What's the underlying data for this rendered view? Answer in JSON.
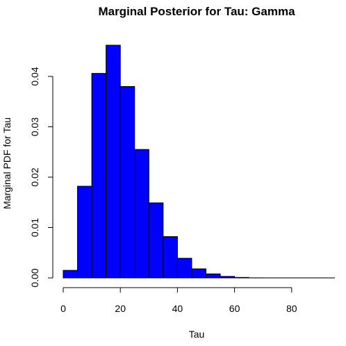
{
  "chart_data": {
    "type": "bar",
    "title": "Marginal Posterior for Tau: Gamma",
    "xlabel": "Tau",
    "ylabel": "Marginal PDF for Tau",
    "bin_width": 5,
    "bins": [
      {
        "start": 0,
        "end": 5,
        "value": 0.0015
      },
      {
        "start": 5,
        "end": 10,
        "value": 0.0182
      },
      {
        "start": 10,
        "end": 15,
        "value": 0.0406
      },
      {
        "start": 15,
        "end": 20,
        "value": 0.0462
      },
      {
        "start": 20,
        "end": 25,
        "value": 0.038
      },
      {
        "start": 25,
        "end": 30,
        "value": 0.0255
      },
      {
        "start": 30,
        "end": 35,
        "value": 0.0149
      },
      {
        "start": 35,
        "end": 40,
        "value": 0.0082
      },
      {
        "start": 40,
        "end": 45,
        "value": 0.0039
      },
      {
        "start": 45,
        "end": 50,
        "value": 0.0018
      },
      {
        "start": 50,
        "end": 55,
        "value": 0.0008
      },
      {
        "start": 55,
        "end": 60,
        "value": 0.0003
      },
      {
        "start": 60,
        "end": 65,
        "value": 0.0001
      },
      {
        "start": 65,
        "end": 70,
        "value": 2e-05
      },
      {
        "start": 70,
        "end": 75,
        "value": 1e-05
      },
      {
        "start": 75,
        "end": 80,
        "value": 1e-05
      },
      {
        "start": 80,
        "end": 85,
        "value": 1e-05
      },
      {
        "start": 85,
        "end": 90,
        "value": 1e-05
      },
      {
        "start": 90,
        "end": 95,
        "value": 1e-05
      }
    ],
    "xlim": [
      0,
      95
    ],
    "ylim": [
      0,
      0.047
    ],
    "xticks": [
      0,
      20,
      40,
      60,
      80
    ],
    "xtick_labels": [
      "0",
      "20",
      "40",
      "60",
      "80"
    ],
    "yticks": [
      0,
      0.01,
      0.02,
      0.03,
      0.04
    ],
    "ytick_labels": [
      "0.00",
      "0.01",
      "0.02",
      "0.03",
      "0.04"
    ],
    "bar_color": "#0000ff",
    "border_color": "#000000",
    "grid": false
  }
}
